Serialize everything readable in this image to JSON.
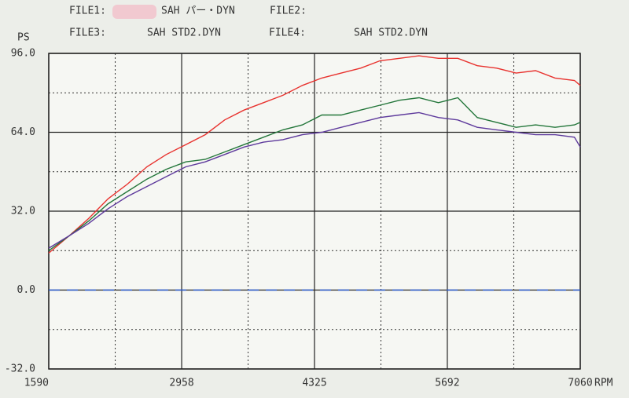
{
  "chart_data": {
    "type": "line",
    "y_label": "PS",
    "x_label": "RPM",
    "xlim": [
      1590,
      7060
    ],
    "xticks": [
      1590,
      2958,
      4325,
      5692,
      7060
    ],
    "ylim": [
      -32,
      96
    ],
    "yticks": [
      {
        "value": -32,
        "label": "-32.0"
      },
      {
        "value": 0,
        "label": "0.0"
      },
      {
        "value": 32,
        "label": "32.0"
      },
      {
        "value": 64,
        "label": "64.0"
      },
      {
        "value": 96,
        "label": "96.0"
      }
    ],
    "grid": true,
    "zero_line": {
      "value": 0,
      "color": "#2a5bd0"
    },
    "x": [
      1590,
      1800,
      2000,
      2200,
      2400,
      2600,
      2800,
      3000,
      3200,
      3400,
      3600,
      3800,
      4000,
      4200,
      4400,
      4600,
      4800,
      5000,
      5200,
      5400,
      5600,
      5800,
      6000,
      6200,
      6400,
      6600,
      6800,
      7000,
      7060
    ],
    "series": [
      {
        "name": "FILE1:",
        "file": "SAH パー・DYN",
        "color": "#e8322e",
        "values": [
          15,
          22,
          29,
          37,
          43,
          50,
          55,
          59,
          63,
          69,
          73,
          76,
          79,
          83,
          86,
          88,
          90,
          93,
          94,
          95,
          94,
          94,
          91,
          90,
          88,
          89,
          86,
          85,
          83
        ]
      },
      {
        "name": "FILE2:",
        "color": "#23763a",
        "values": [
          16,
          22,
          28,
          35,
          40,
          45,
          49,
          52,
          53,
          56,
          59,
          62,
          65,
          67,
          71,
          71,
          73,
          75,
          77,
          78,
          76,
          78,
          70,
          68,
          66,
          67,
          66,
          67,
          68
        ]
      },
      {
        "name": "FILE3:",
        "file": "SAH STD2.DYN",
        "color": "#2fb6b4",
        "values": [
          null,
          null,
          null,
          null,
          null,
          null,
          null,
          null,
          null,
          null,
          null,
          null,
          null,
          null,
          null,
          null,
          null,
          null,
          null,
          null,
          null,
          null,
          null,
          null,
          null,
          null,
          null,
          null,
          null
        ]
      },
      {
        "name": "FILE4:",
        "file": "SAH STD2.DYN",
        "color": "#5e3a9c",
        "values": [
          17,
          22,
          27,
          33,
          38,
          42,
          46,
          50,
          52,
          55,
          58,
          60,
          61,
          63,
          64,
          66,
          68,
          70,
          71,
          72,
          70,
          69,
          66,
          65,
          64,
          63,
          63,
          62,
          58
        ]
      }
    ]
  }
}
